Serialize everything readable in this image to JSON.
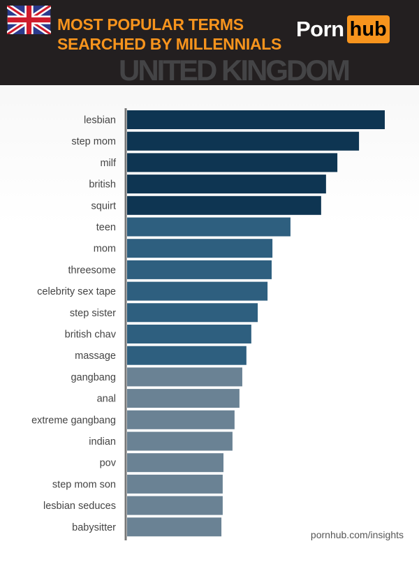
{
  "header": {
    "title_line1": "MOST POPULAR TERMS",
    "title_line2": "SEARCHED BY MILLENNIALS",
    "country": "UNITED KINGDOM",
    "logo_text": [
      "Porn",
      "hub"
    ],
    "flag": "uk-flag-icon"
  },
  "footer": {
    "source": "pornhub.com/insights"
  },
  "colors": {
    "header_bg": "#231f20",
    "accent": "#f7941d",
    "tier1": "#0e3552",
    "tier2": "#2e5f7f",
    "tier3": "#6a8294"
  },
  "chart_data": {
    "type": "bar",
    "orientation": "horizontal",
    "categories": [
      "lesbian",
      "step mom",
      "milf",
      "british",
      "squirt",
      "teen",
      "mom",
      "threesome",
      "celebrity sex tape",
      "step sister",
      "british chav",
      "massage",
      "gangbang",
      "anal",
      "extreme gangbang",
      "indian",
      "pov",
      "step mom son",
      "lesbian seduces",
      "babysitter"
    ],
    "values": [
      100,
      90,
      81.6,
      77.2,
      75.3,
      63.4,
      56.4,
      56.1,
      54.5,
      50.7,
      48.2,
      46.3,
      44.7,
      43.6,
      41.7,
      40.9,
      37.4,
      37.1,
      37.1,
      36.6
    ],
    "tiers": [
      1,
      1,
      1,
      1,
      1,
      2,
      2,
      2,
      2,
      2,
      2,
      2,
      3,
      3,
      3,
      3,
      3,
      3,
      3,
      3
    ],
    "title": "MOST POPULAR TERMS SEARCHED BY MILLENNIALS",
    "xlabel": "",
    "ylabel": "",
    "grid": false
  }
}
